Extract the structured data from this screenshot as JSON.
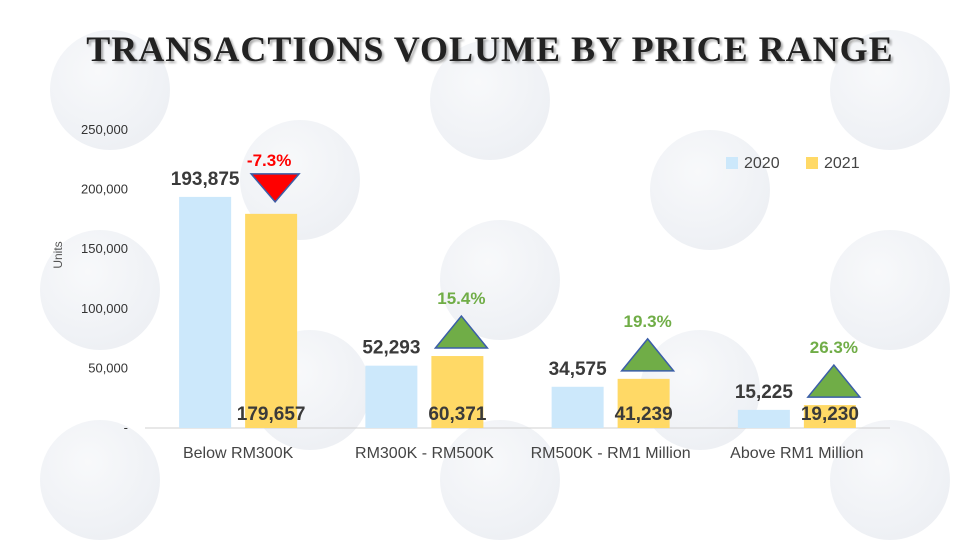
{
  "chart_data": {
    "type": "bar",
    "title": "TRANSACTIONS VOLUME BY PRICE RANGE",
    "ylabel": "Units",
    "xlabel": "",
    "ylim": [
      0,
      250000
    ],
    "yticks": [
      0,
      50000,
      100000,
      150000,
      200000,
      250000
    ],
    "ytick_labels": [
      "-",
      "50,000",
      "100,000",
      "150,000",
      "200,000",
      "250,000"
    ],
    "categories": [
      "Below RM300K",
      "RM300K - RM500K",
      "RM500K - RM1 Million",
      "Above RM1 Million"
    ],
    "series": [
      {
        "name": "2020",
        "color": "#cce8fb",
        "values": [
          193875,
          52293,
          34575,
          15225
        ],
        "labels": [
          "193,875",
          "52,293",
          "34,575",
          "15,225"
        ]
      },
      {
        "name": "2021",
        "color": "#ffd966",
        "values": [
          179657,
          60371,
          41239,
          19230
        ],
        "labels": [
          "179,657",
          "60,371",
          "41,239",
          "19,230"
        ]
      }
    ],
    "changes": [
      {
        "label": "-7.3%",
        "direction": "down",
        "color": "#ff0000",
        "arrow_color": "#ff0000"
      },
      {
        "label": "15.4%",
        "direction": "up",
        "color": "#70ad47",
        "arrow_color": "#70ad47"
      },
      {
        "label": "19.3%",
        "direction": "up",
        "color": "#70ad47",
        "arrow_color": "#70ad47"
      },
      {
        "label": "26.3%",
        "direction": "up",
        "color": "#70ad47",
        "arrow_color": "#70ad47"
      }
    ],
    "legend_position": "top-right",
    "grid": false
  }
}
